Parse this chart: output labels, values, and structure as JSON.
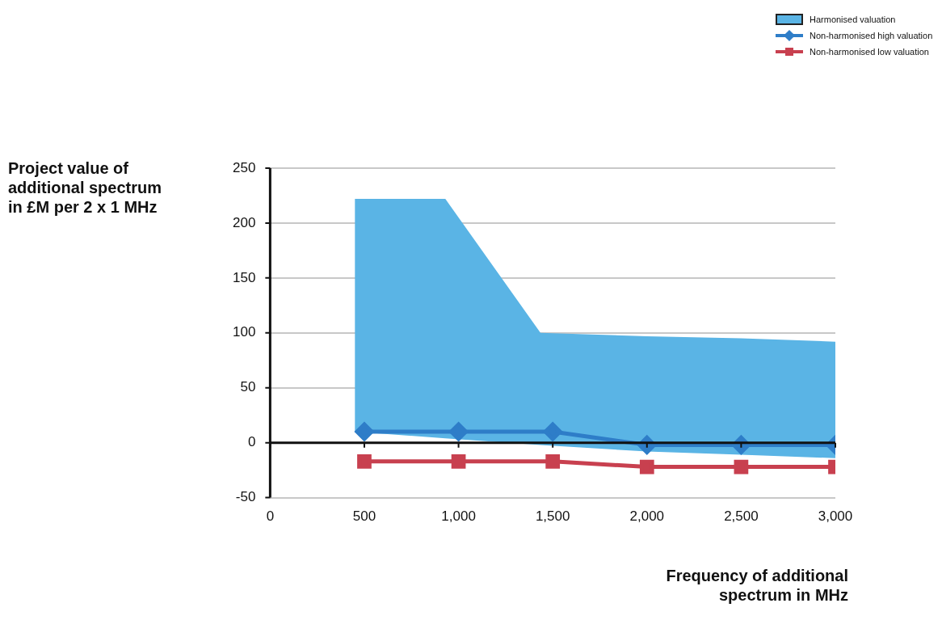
{
  "chart_data": {
    "type": "line",
    "xlabel": "Frequency of additional\nspectrum in MHz",
    "ylabel": "Project value of\nadditional spectrum\nin £M per 2 x 1 MHz",
    "xlim": [
      0,
      3000
    ],
    "xticks": [
      0,
      500,
      {
        "value": 1000,
        "label": "1,000"
      },
      {
        "value": 1500,
        "label": "1,500"
      },
      {
        "value": 2000,
        "label": "2,000"
      },
      {
        "value": 2500,
        "label": "2,500"
      },
      {
        "value": 3000,
        "label": "3,000"
      }
    ],
    "ylim": [
      -50,
      250
    ],
    "yticks": [
      -50,
      0,
      50,
      100,
      150,
      200,
      250
    ],
    "grid": "y",
    "legend": "top right",
    "series": [
      {
        "type": "area",
        "name": "Harmonised valuation",
        "color": "#5ab4e5",
        "x": [
          450,
          930,
          1435,
          2000,
          2500,
          3000,
          3000,
          2500,
          2000,
          1435,
          930,
          450
        ],
        "values": [
          222,
          222,
          100,
          97,
          95,
          92,
          -14,
          -11,
          -8,
          -2,
          4,
          10
        ]
      },
      {
        "name": "Non-harmonised high valuation",
        "color": "#2e7dc8",
        "marker": "diamond",
        "x": [
          500,
          1000,
          1500,
          2000,
          2500,
          3000
        ],
        "values": [
          10,
          10,
          10,
          -2,
          -2,
          -2
        ]
      },
      {
        "name": "Non-harmonised low valuation",
        "color": "#c8404f",
        "marker": "square",
        "x": [
          500,
          1000,
          1500,
          2000,
          2500,
          3000
        ],
        "values": [
          -17,
          -17,
          -17,
          -22,
          -22,
          -22
        ]
      }
    ]
  }
}
